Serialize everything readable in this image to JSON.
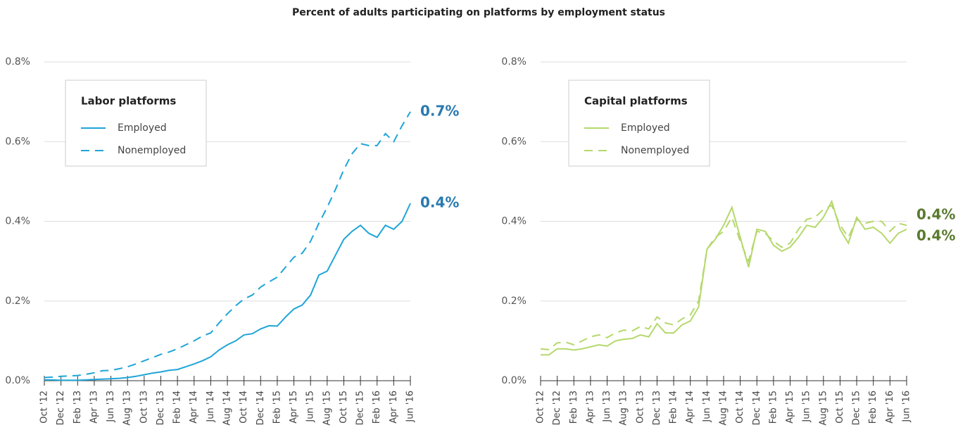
{
  "title": "Percent of adults participating on platforms by employment status",
  "chart_data": [
    {
      "type": "line",
      "legend_title": "Labor platforms",
      "legend": "upper left",
      "categories": [
        "Oct '12",
        null,
        "Dec '12",
        null,
        "Feb '13",
        null,
        "Apr '13",
        null,
        "Jun '13",
        null,
        "Aug '13",
        null,
        "Oct '13",
        null,
        "Dec '13",
        null,
        "Feb '14",
        null,
        "Apr '14",
        null,
        "Jun '14",
        null,
        "Aug '14",
        null,
        "Oct '14",
        null,
        "Dec '14",
        null,
        "Feb '15",
        null,
        "Apr '15",
        null,
        "Jun '15",
        null,
        "Aug '15",
        null,
        "Oct '15",
        null,
        "Dec '15",
        null,
        "Feb '16",
        null,
        "Apr '16",
        null,
        "Jun '16"
      ],
      "ylim": [
        0,
        0.8
      ],
      "yticks": [
        {
          "value": 0,
          "label": "0.0%"
        },
        {
          "value": 0.2,
          "label": "0.2%"
        },
        {
          "value": 0.4,
          "label": "0.4%"
        },
        {
          "value": 0.6,
          "label": "0.6%"
        },
        {
          "value": 0.8,
          "label": "0.8%"
        }
      ],
      "grid": true,
      "label_color": "#2a7ab0",
      "series": [
        {
          "name": "Employed",
          "color": "#1fa5d8",
          "dash": false,
          "end_label": "0.4%",
          "values": [
            0.002,
            0.002,
            0.001,
            0.001,
            0.001,
            0.002,
            0.003,
            0.004,
            0.005,
            0.006,
            0.008,
            0.011,
            0.015,
            0.019,
            0.022,
            0.026,
            0.028,
            0.035,
            0.042,
            0.05,
            0.06,
            0.077,
            0.09,
            0.1,
            0.115,
            0.118,
            0.13,
            0.138,
            0.137,
            0.16,
            0.18,
            0.19,
            0.215,
            0.265,
            0.275,
            0.315,
            0.355,
            0.375,
            0.39,
            0.37,
            0.36,
            0.39,
            0.38,
            0.4,
            0.445
          ]
        },
        {
          "name": "Nonemployed",
          "color": "#1fa5d8",
          "dash": true,
          "end_label": "0.7%",
          "values": [
            0.008,
            0.009,
            0.011,
            0.012,
            0.013,
            0.016,
            0.02,
            0.025,
            0.026,
            0.03,
            0.035,
            0.042,
            0.05,
            0.058,
            0.066,
            0.072,
            0.08,
            0.09,
            0.1,
            0.112,
            0.12,
            0.145,
            0.168,
            0.188,
            0.205,
            0.215,
            0.235,
            0.248,
            0.26,
            0.285,
            0.31,
            0.32,
            0.35,
            0.395,
            0.435,
            0.48,
            0.53,
            0.57,
            0.595,
            0.59,
            0.59,
            0.62,
            0.6,
            0.64,
            0.675
          ]
        }
      ]
    },
    {
      "type": "line",
      "legend_title": "Capital platforms",
      "legend": "upper left",
      "categories": [
        "Oct '12",
        null,
        "Dec '12",
        null,
        "Feb '13",
        null,
        "Apr '13",
        null,
        "Jun '13",
        null,
        "Aug '13",
        null,
        "Oct '13",
        null,
        "Dec '13",
        null,
        "Feb '14",
        null,
        "Apr '14",
        null,
        "Jun '14",
        null,
        "Aug '14",
        null,
        "Oct '14",
        null,
        "Dec '14",
        null,
        "Feb '15",
        null,
        "Apr '15",
        null,
        "Jun '15",
        null,
        "Aug '15",
        null,
        "Oct '15",
        null,
        "Dec '15",
        null,
        "Feb '16",
        null,
        "Apr '16",
        null,
        "Jun '16"
      ],
      "ylim": [
        0,
        0.8
      ],
      "yticks": [
        {
          "value": 0,
          "label": "0.0%"
        },
        {
          "value": 0.2,
          "label": "0.2%"
        },
        {
          "value": 0.4,
          "label": "0.4%"
        },
        {
          "value": 0.6,
          "label": "0.6%"
        },
        {
          "value": 0.8,
          "label": "0.8%"
        }
      ],
      "grid": true,
      "label_color": "#5a7a2e",
      "series": [
        {
          "name": "Employed",
          "color": "#b5d86b",
          "dash": false,
          "end_label": "0.4%",
          "values": [
            0.065,
            0.065,
            0.08,
            0.08,
            0.077,
            0.08,
            0.085,
            0.09,
            0.087,
            0.1,
            0.104,
            0.106,
            0.115,
            0.11,
            0.143,
            0.12,
            0.12,
            0.14,
            0.15,
            0.185,
            0.33,
            0.355,
            0.39,
            0.435,
            0.36,
            0.285,
            0.38,
            0.375,
            0.34,
            0.325,
            0.335,
            0.36,
            0.39,
            0.385,
            0.41,
            0.45,
            0.38,
            0.345,
            0.41,
            0.38,
            0.385,
            0.37,
            0.345,
            0.37,
            0.38
          ]
        },
        {
          "name": "Nonemployed",
          "color": "#b5d86b",
          "dash": true,
          "end_label": "0.4%",
          "values": [
            0.08,
            0.078,
            0.095,
            0.097,
            0.09,
            0.1,
            0.11,
            0.115,
            0.108,
            0.12,
            0.127,
            0.125,
            0.136,
            0.13,
            0.16,
            0.145,
            0.14,
            0.155,
            0.165,
            0.2,
            0.33,
            0.36,
            0.375,
            0.41,
            0.35,
            0.3,
            0.375,
            0.37,
            0.35,
            0.335,
            0.345,
            0.38,
            0.405,
            0.41,
            0.43,
            0.44,
            0.39,
            0.36,
            0.405,
            0.395,
            0.4,
            0.4,
            0.375,
            0.395,
            0.39
          ]
        }
      ]
    }
  ]
}
